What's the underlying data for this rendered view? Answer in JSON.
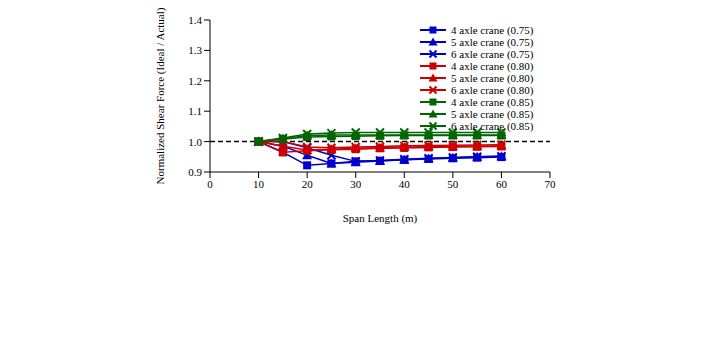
{
  "chart_data": {
    "type": "line",
    "x_label": "Span Length (m)",
    "y_label": "Normalized Shear Force (Ideal / Actual)",
    "x": [
      10,
      15,
      20,
      25,
      30,
      35,
      40,
      45,
      50,
      55,
      60
    ],
    "xlim": [
      0,
      70
    ],
    "xticks": [
      0,
      10,
      20,
      30,
      40,
      50,
      60,
      70
    ],
    "ylim": [
      0.9,
      1.4
    ],
    "yticks": [
      0.9,
      {
        "value": 1,
        "label": "1.0"
      },
      1.1,
      1.2,
      1.3,
      1.4
    ],
    "reference_y": 1,
    "grid": false,
    "legend": "upper right",
    "series": [
      {
        "name": "4 axle crane (0.75)",
        "color": "#0000cc",
        "marker": "square",
        "values": [
          1.0,
          0.965,
          0.922,
          0.928,
          0.935,
          0.937,
          0.94,
          0.943,
          0.945,
          0.947,
          0.949
        ]
      },
      {
        "name": "5 axle crane (0.75)",
        "color": "#0000cc",
        "marker": "triangle",
        "values": [
          1.0,
          0.985,
          0.955,
          0.928,
          0.932,
          0.936,
          0.94,
          0.944,
          0.947,
          0.95,
          0.952
        ]
      },
      {
        "name": "6 axle crane (0.75)",
        "color": "#0000cc",
        "marker": "x",
        "values": [
          1.0,
          1.0,
          0.98,
          0.955,
          0.935,
          0.938,
          0.942,
          0.945,
          0.948,
          0.95,
          0.952
        ]
      },
      {
        "name": "4 axle crane (0.80)",
        "color": "#cc0000",
        "marker": "square",
        "values": [
          1.0,
          0.965,
          0.97,
          0.973,
          0.975,
          0.978,
          0.979,
          0.981,
          0.982,
          0.983,
          0.984
        ]
      },
      {
        "name": "5 axle crane (0.80)",
        "color": "#cc0000",
        "marker": "triangle",
        "values": [
          1.0,
          0.985,
          0.972,
          0.975,
          0.978,
          0.98,
          0.982,
          0.983,
          0.984,
          0.985,
          0.986
        ]
      },
      {
        "name": "6 axle crane (0.80)",
        "color": "#cc0000",
        "marker": "x",
        "values": [
          1.0,
          1.0,
          0.982,
          0.98,
          0.982,
          0.984,
          0.986,
          0.987,
          0.988,
          0.989,
          0.99
        ]
      },
      {
        "name": "4 axle crane (0.85)",
        "color": "#006600",
        "marker": "square",
        "values": [
          1.0,
          1.008,
          1.015,
          1.017,
          1.018,
          1.019,
          1.02,
          1.02,
          1.02,
          1.02,
          1.02
        ]
      },
      {
        "name": "5 axle crane (0.85)",
        "color": "#006600",
        "marker": "triangle",
        "values": [
          1.0,
          1.01,
          1.02,
          1.022,
          1.022,
          1.022,
          1.022,
          1.022,
          1.022,
          1.022,
          1.022
        ]
      },
      {
        "name": "6 axle crane (0.85)",
        "color": "#006600",
        "marker": "x",
        "values": [
          1.0,
          1.012,
          1.025,
          1.028,
          1.03,
          1.03,
          1.03,
          1.03,
          1.03,
          1.03,
          1.03
        ]
      }
    ]
  }
}
